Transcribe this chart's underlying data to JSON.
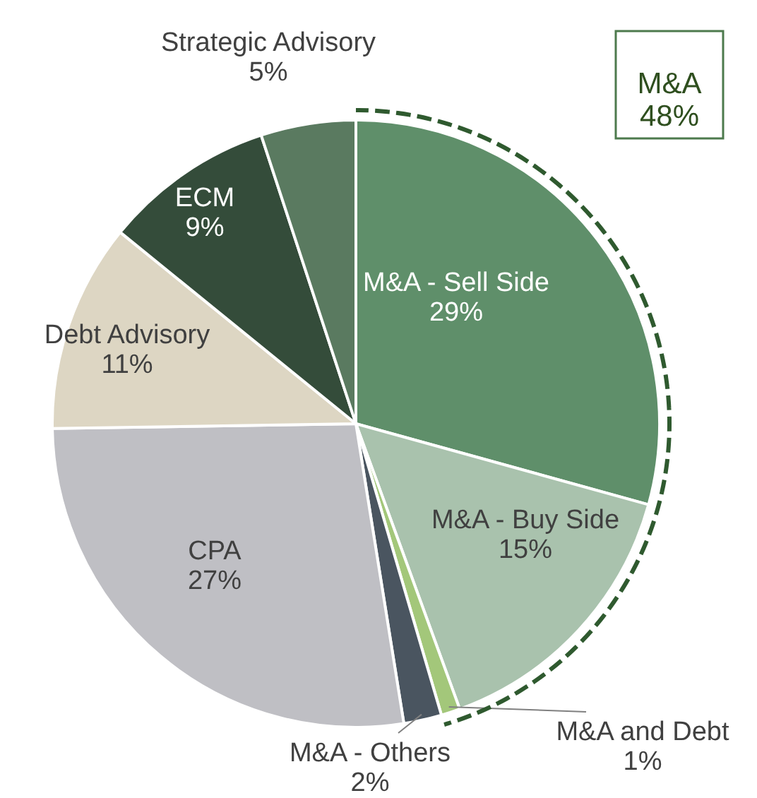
{
  "chart_data": {
    "type": "pie",
    "categories": [
      "M&A - Sell Side",
      "M&A - Buy Side",
      "M&A and Debt",
      "M&A - Others",
      "CPA",
      "Debt Advisory",
      "ECM",
      "Strategic Advisory"
    ],
    "values": [
      29,
      15,
      1,
      2,
      27,
      11,
      9,
      5
    ],
    "value_labels": [
      "29%",
      "15%",
      "1%",
      "2%",
      "27%",
      "11%",
      "9%",
      "5%"
    ],
    "colors": [
      "#5f8f6a",
      "#a9c2ad",
      "#a3c77a",
      "#4a5560",
      "#bfbfc4",
      "#ddd6c3",
      "#344c3a",
      "#5a7a60"
    ],
    "annotations": [
      "M&A\n48%"
    ]
  }
}
